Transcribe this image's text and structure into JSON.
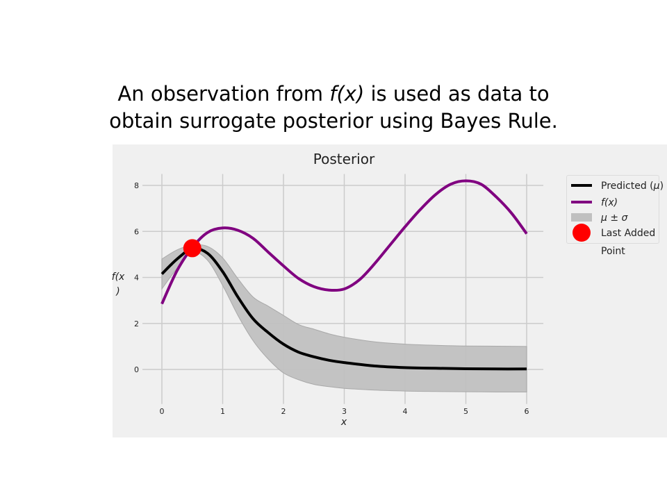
{
  "slide": {
    "title_line1_pre": "An observation from ",
    "title_line1_fx": "f(x)",
    "title_line1_post": " is used as data to",
    "title_line2": "obtain surrogate posterior using Bayes Rule."
  },
  "chart_data": {
    "type": "line",
    "title": "Posterior",
    "xlabel": "x",
    "ylabel_line1": "f(x",
    "ylabel_line2": ")",
    "xlim": [
      0,
      6
    ],
    "ylim": [
      -1.5,
      8.5
    ],
    "xticks": [
      0,
      1,
      2,
      3,
      4,
      5,
      6
    ],
    "yticks": [
      0,
      2,
      4,
      6,
      8
    ],
    "grid": true,
    "legend_position": "outside-right",
    "legend": [
      {
        "label_pre": "Predicted (",
        "label_sym": "μ",
        "label_post": ")",
        "kind": "line",
        "color": "#000000"
      },
      {
        "label_pre": "",
        "label_sym": "f(x)",
        "label_post": "",
        "kind": "line",
        "color": "#800080"
      },
      {
        "label_pre": "",
        "label_sym": "μ ± σ",
        "label_post": "",
        "kind": "patch",
        "color": "#c0c0c0"
      },
      {
        "label_line1": "Last Added",
        "label_line2": "Point",
        "kind": "marker",
        "color": "#ff0000"
      }
    ],
    "series": [
      {
        "name": "Predicted (μ)",
        "color": "#000000",
        "x": [
          0,
          0.25,
          0.5,
          0.75,
          1.0,
          1.25,
          1.5,
          1.75,
          2.0,
          2.25,
          2.5,
          2.75,
          3.0,
          3.5,
          4.0,
          4.5,
          5.0,
          5.5,
          6.0
        ],
        "y": [
          4.15,
          4.8,
          5.25,
          5.05,
          4.25,
          3.15,
          2.2,
          1.6,
          1.1,
          0.75,
          0.55,
          0.4,
          0.3,
          0.15,
          0.08,
          0.05,
          0.03,
          0.02,
          0.02
        ]
      },
      {
        "name": "f(x)",
        "color": "#800080",
        "x": [
          0,
          0.25,
          0.5,
          0.75,
          1.0,
          1.25,
          1.5,
          1.75,
          2.0,
          2.25,
          2.5,
          2.75,
          3.0,
          3.25,
          3.5,
          3.75,
          4.0,
          4.25,
          4.5,
          4.75,
          5.0,
          5.25,
          5.5,
          5.75,
          6.0
        ],
        "y": [
          2.85,
          4.3,
          5.3,
          5.95,
          6.15,
          6.05,
          5.7,
          5.1,
          4.5,
          3.95,
          3.6,
          3.45,
          3.5,
          3.9,
          4.6,
          5.4,
          6.2,
          6.95,
          7.6,
          8.05,
          8.2,
          8.05,
          7.5,
          6.8,
          5.9
        ]
      }
    ],
    "band": {
      "name": "μ ± σ",
      "color": "#c0c0c0",
      "x": [
        0,
        0.25,
        0.5,
        0.75,
        1.0,
        1.25,
        1.5,
        1.75,
        2.0,
        2.25,
        2.5,
        2.75,
        3.0,
        3.5,
        4.0,
        4.5,
        5.0,
        5.5,
        6.0
      ],
      "lower": [
        3.5,
        4.4,
        5.1,
        4.75,
        3.65,
        2.35,
        1.25,
        0.45,
        -0.15,
        -0.45,
        -0.65,
        -0.75,
        -0.82,
        -0.9,
        -0.94,
        -0.96,
        -0.97,
        -0.98,
        -0.98
      ],
      "upper": [
        4.8,
        5.2,
        5.4,
        5.35,
        4.85,
        3.95,
        3.15,
        2.75,
        2.35,
        1.95,
        1.75,
        1.55,
        1.4,
        1.2,
        1.1,
        1.05,
        1.02,
        1.01,
        1.0
      ]
    },
    "last_point": {
      "name": "Last Added Point",
      "x": 0.5,
      "y": 5.27,
      "color": "#ff0000"
    }
  }
}
